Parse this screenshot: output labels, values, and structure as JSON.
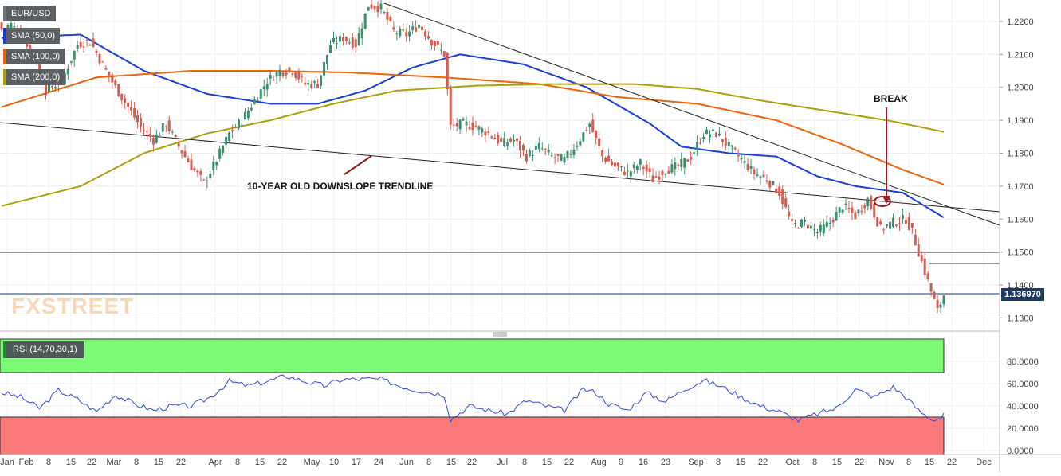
{
  "symbol": "EUR/USD",
  "legend": {
    "sma50": {
      "label": "SMA (50,0)",
      "color": "#1a3fd8"
    },
    "sma100": {
      "label": "SMA (100,0)",
      "color": "#e8650a"
    },
    "sma200": {
      "label": "SMA (200,0)",
      "color": "#a9a112"
    },
    "rsi": {
      "label": "RSI (14,70,30,1)"
    }
  },
  "last_price": "1.136970",
  "watermark": "FXSTREET",
  "annotations": {
    "trendline_label": "10-YEAR OLD DOWNSLOPE TRENDLINE",
    "break_label": "BREAK"
  },
  "colors": {
    "up_candle": "#3d8f6c",
    "down_candle": "#d35d52",
    "rsi_line": "#2f46e0",
    "overbought_fill": "#7dfa76",
    "oversold_fill": "#fb7a79",
    "axis_text": "#444444",
    "break_marker": "#9b1b1b"
  },
  "chart_data": {
    "type": "candlestick",
    "title": "EUR/USD",
    "x_tick_labels": [
      "Jan",
      "Feb",
      "8",
      "15",
      "22",
      "Mar",
      "8",
      "15",
      "22",
      "Apr",
      "8",
      "15",
      "22",
      "May",
      "10",
      "17",
      "24",
      "Jun",
      "8",
      "15",
      "22",
      "Jul",
      "8",
      "15",
      "22",
      "Aug",
      "9",
      "16",
      "23",
      "Sep",
      "8",
      "15",
      "22",
      "Oct",
      "8",
      "15",
      "22",
      "Nov",
      "8",
      "15",
      "22",
      "Dec"
    ],
    "y_ticks_price": [
      "1.2200",
      "1.2100",
      "1.2000",
      "1.1900",
      "1.1800",
      "1.1700",
      "1.1600",
      "1.1500",
      "1.1400",
      "1.1300"
    ],
    "ylim_price": [
      1.126,
      1.2265
    ],
    "y_ticks_rsi": [
      "80.0000",
      "60.0000",
      "40.0000",
      "20.0000",
      "0.0000"
    ],
    "ylim_rsi": [
      0,
      100
    ],
    "rsi_levels": {
      "overbought": 70,
      "oversold": 30
    },
    "horizontal_levels": [
      1.15,
      1.137,
      1.1465
    ],
    "close_anchors": [
      [
        0,
        1.2175
      ],
      [
        3,
        1.219
      ],
      [
        7,
        1.215
      ],
      [
        11,
        1.208
      ],
      [
        14,
        1.199
      ],
      [
        19,
        1.202
      ],
      [
        24,
        1.213
      ],
      [
        28,
        1.214
      ],
      [
        33,
        1.205
      ],
      [
        36,
        1.2
      ],
      [
        40,
        1.194
      ],
      [
        44,
        1.188
      ],
      [
        48,
        1.184
      ],
      [
        52,
        1.189
      ],
      [
        56,
        1.182
      ],
      [
        60,
        1.176
      ],
      [
        64,
        1.171
      ],
      [
        68,
        1.178
      ],
      [
        72,
        1.186
      ],
      [
        76,
        1.19
      ],
      [
        80,
        1.196
      ],
      [
        84,
        1.202
      ],
      [
        88,
        1.205
      ],
      [
        92,
        1.205
      ],
      [
        96,
        1.201
      ],
      [
        100,
        1.201
      ],
      [
        104,
        1.213
      ],
      [
        108,
        1.215
      ],
      [
        112,
        1.213
      ],
      [
        116,
        1.225
      ],
      [
        120,
        1.224
      ],
      [
        124,
        1.217
      ],
      [
        128,
        1.216
      ],
      [
        132,
        1.219
      ],
      [
        136,
        1.214
      ],
      [
        140,
        1.21
      ],
      [
        142,
        1.188
      ],
      [
        146,
        1.189
      ],
      [
        150,
        1.188
      ],
      [
        154,
        1.186
      ],
      [
        158,
        1.183
      ],
      [
        162,
        1.184
      ],
      [
        166,
        1.179
      ],
      [
        170,
        1.182
      ],
      [
        174,
        1.179
      ],
      [
        178,
        1.178
      ],
      [
        182,
        1.183
      ],
      [
        186,
        1.189
      ],
      [
        190,
        1.179
      ],
      [
        194,
        1.176
      ],
      [
        198,
        1.174
      ],
      [
        202,
        1.177
      ],
      [
        206,
        1.172
      ],
      [
        210,
        1.175
      ],
      [
        214,
        1.176
      ],
      [
        218,
        1.179
      ],
      [
        222,
        1.186
      ],
      [
        226,
        1.186
      ],
      [
        230,
        1.182
      ],
      [
        234,
        1.178
      ],
      [
        238,
        1.174
      ],
      [
        242,
        1.172
      ],
      [
        246,
        1.168
      ],
      [
        250,
        1.158
      ],
      [
        254,
        1.159
      ],
      [
        258,
        1.156
      ],
      [
        262,
        1.159
      ],
      [
        266,
        1.164
      ],
      [
        270,
        1.161
      ],
      [
        274,
        1.166
      ],
      [
        278,
        1.157
      ],
      [
        282,
        1.159
      ],
      [
        286,
        1.16
      ],
      [
        288,
        1.156
      ],
      [
        292,
        1.144
      ],
      [
        296,
        1.132
      ],
      [
        298,
        1.137
      ]
    ],
    "series": [
      {
        "name": "SMA (50,0)",
        "anchors": [
          [
            0,
            1.215
          ],
          [
            25,
            1.216
          ],
          [
            45,
            1.205
          ],
          [
            65,
            1.198
          ],
          [
            85,
            1.195
          ],
          [
            100,
            1.195
          ],
          [
            115,
            1.199
          ],
          [
            130,
            1.206
          ],
          [
            145,
            1.21
          ],
          [
            165,
            1.207
          ],
          [
            185,
            1.2
          ],
          [
            205,
            1.189
          ],
          [
            215,
            1.182
          ],
          [
            230,
            1.18
          ],
          [
            245,
            1.179
          ],
          [
            258,
            1.173
          ],
          [
            270,
            1.17
          ],
          [
            285,
            1.168
          ],
          [
            298,
            1.1605
          ]
        ]
      },
      {
        "name": "SMA (100,0)",
        "anchors": [
          [
            0,
            1.194
          ],
          [
            30,
            1.203
          ],
          [
            60,
            1.205
          ],
          [
            85,
            1.205
          ],
          [
            110,
            1.2045
          ],
          [
            140,
            1.203
          ],
          [
            170,
            1.201
          ],
          [
            195,
            1.197
          ],
          [
            220,
            1.195
          ],
          [
            245,
            1.19
          ],
          [
            265,
            1.183
          ],
          [
            285,
            1.175
          ],
          [
            298,
            1.1705
          ]
        ]
      },
      {
        "name": "SMA (200,0)",
        "anchors": [
          [
            0,
            1.164
          ],
          [
            25,
            1.17
          ],
          [
            45,
            1.18
          ],
          [
            65,
            1.186
          ],
          [
            85,
            1.19
          ],
          [
            105,
            1.195
          ],
          [
            125,
            1.199
          ],
          [
            150,
            1.2005
          ],
          [
            175,
            1.201
          ],
          [
            200,
            1.201
          ],
          [
            220,
            1.1995
          ],
          [
            240,
            1.196
          ],
          [
            260,
            1.193
          ],
          [
            280,
            1.19
          ],
          [
            298,
            1.1865
          ]
        ]
      },
      {
        "name": "RSI (14,70,30,1)",
        "anchors": [
          [
            0,
            52
          ],
          [
            6,
            48
          ],
          [
            12,
            38
          ],
          [
            18,
            54
          ],
          [
            24,
            46
          ],
          [
            30,
            35
          ],
          [
            36,
            50
          ],
          [
            42,
            42
          ],
          [
            48,
            36
          ],
          [
            54,
            40
          ],
          [
            60,
            40
          ],
          [
            66,
            48
          ],
          [
            72,
            62
          ],
          [
            78,
            58
          ],
          [
            84,
            62
          ],
          [
            90,
            67
          ],
          [
            96,
            62
          ],
          [
            102,
            58
          ],
          [
            108,
            64
          ],
          [
            114,
            64
          ],
          [
            120,
            64
          ],
          [
            126,
            58
          ],
          [
            130,
            55
          ],
          [
            136,
            52
          ],
          [
            140,
            50
          ],
          [
            142,
            28
          ],
          [
            148,
            40
          ],
          [
            154,
            36
          ],
          [
            160,
            33
          ],
          [
            166,
            45
          ],
          [
            172,
            40
          ],
          [
            178,
            36
          ],
          [
            184,
            55
          ],
          [
            188,
            52
          ],
          [
            192,
            42
          ],
          [
            198,
            36
          ],
          [
            204,
            52
          ],
          [
            210,
            44
          ],
          [
            216,
            55
          ],
          [
            222,
            63
          ],
          [
            228,
            57
          ],
          [
            234,
            48
          ],
          [
            240,
            40
          ],
          [
            246,
            35
          ],
          [
            252,
            27
          ],
          [
            258,
            33
          ],
          [
            264,
            38
          ],
          [
            270,
            55
          ],
          [
            276,
            48
          ],
          [
            282,
            57
          ],
          [
            286,
            48
          ],
          [
            290,
            36
          ],
          [
            294,
            28
          ],
          [
            297,
            29
          ],
          [
            298,
            34
          ]
        ]
      }
    ],
    "legend_position": "top-left",
    "grid": true
  }
}
